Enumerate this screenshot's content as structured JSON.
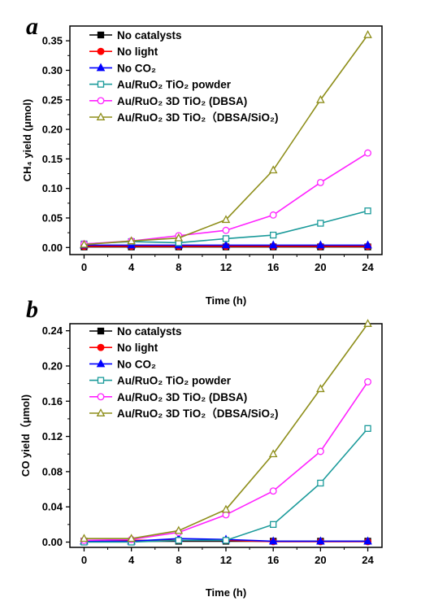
{
  "colors": {
    "No catalysts": "#000000",
    "No light": "#ff0000",
    "No CO2": "#0000ff",
    "Au/RuO2 TiO2 powder": "#1a9a9a",
    "Au/RuO2 3D TiO2 (DBSA)": "#ff22ff",
    "Au/RuO2 3D TiO2 (DBSA/SiO2)": "#8e8e1a"
  },
  "chart_data": [
    {
      "panel": "a",
      "type": "line",
      "xlabel": "Time (h)",
      "ylabel": "CH₄ yield (μmol)",
      "x": [
        0,
        4,
        8,
        12,
        16,
        20,
        24
      ],
      "xticks": [
        "0",
        "4",
        "8",
        "12",
        "16",
        "20",
        "24"
      ],
      "xlim": [
        -1.2,
        25.2
      ],
      "ylim": [
        -0.012,
        0.375
      ],
      "yticks": [
        "0.00",
        "0.05",
        "0.10",
        "0.15",
        "0.20",
        "0.25",
        "0.30",
        "0.35"
      ],
      "ytick_values": [
        0,
        0.05,
        0.1,
        0.15,
        0.2,
        0.25,
        0.3,
        0.35
      ],
      "legend_position": "top-left",
      "series": [
        {
          "name": "No catalysts",
          "marker": "square-filled",
          "values": [
            0.001,
            0.001,
            0.001,
            0.001,
            0.001,
            0.001,
            0.001
          ]
        },
        {
          "name": "No light",
          "marker": "circle-filled",
          "values": [
            0.002,
            0.002,
            0.002,
            0.002,
            0.002,
            0.002,
            0.002
          ]
        },
        {
          "name": "No CO₂",
          "marker": "triangle-filled",
          "values": [
            0.004,
            0.004,
            0.004,
            0.004,
            0.004,
            0.004,
            0.004
          ]
        },
        {
          "name": "Au/RuO₂ TiO₂ powder",
          "marker": "square-open",
          "values": [
            0.006,
            0.01,
            0.008,
            0.015,
            0.021,
            0.041,
            0.062
          ]
        },
        {
          "name": "Au/RuO₂ 3D TiO₂ (DBSA)",
          "marker": "circle-open",
          "values": [
            0.006,
            0.011,
            0.02,
            0.029,
            0.055,
            0.11,
            0.16
          ]
        },
        {
          "name": "Au/RuO₂ 3D TiO₂（DBSA/SiO₂)",
          "marker": "triangle-open",
          "values": [
            0.005,
            0.011,
            0.016,
            0.047,
            0.131,
            0.25,
            0.36
          ]
        }
      ]
    },
    {
      "panel": "b",
      "type": "line",
      "xlabel": "Time (h)",
      "ylabel": "CO yield（μmol)",
      "x": [
        0,
        4,
        8,
        12,
        16,
        20,
        24
      ],
      "xticks": [
        "0",
        "4",
        "8",
        "12",
        "16",
        "20",
        "24"
      ],
      "xlim": [
        -1.2,
        25.2
      ],
      "ylim": [
        -0.006,
        0.248
      ],
      "yticks": [
        "0.00",
        "0.04",
        "0.08",
        "0.12",
        "0.16",
        "0.20",
        "0.24"
      ],
      "ytick_values": [
        0,
        0.04,
        0.08,
        0.12,
        0.16,
        0.2,
        0.24
      ],
      "legend_position": "top-left",
      "series": [
        {
          "name": "No catalysts",
          "marker": "square-filled",
          "values": [
            0.001,
            0.001,
            0.001,
            0.001,
            0.001,
            0.001,
            0.001
          ]
        },
        {
          "name": "No light",
          "marker": "circle-filled",
          "values": [
            0.002,
            0.002,
            0.002,
            0.002,
            0.0005,
            0.0005,
            0.0005
          ]
        },
        {
          "name": "No CO₂",
          "marker": "triangle-filled",
          "values": [
            0.001,
            0.001,
            0.004,
            0.003,
            0.001,
            0.001,
            0.001
          ]
        },
        {
          "name": "Au/RuO₂ TiO₂ powder",
          "marker": "square-open",
          "values": [
            0.0,
            0.0,
            0.002,
            0.002,
            0.02,
            0.067,
            0.129
          ]
        },
        {
          "name": "Au/RuO₂ 3D TiO₂ (DBSA)",
          "marker": "circle-open",
          "values": [
            0.002,
            0.003,
            0.011,
            0.031,
            0.058,
            0.103,
            0.182
          ]
        },
        {
          "name": "Au/RuO₂ 3D TiO₂（DBSA/SiO₂)",
          "marker": "triangle-open",
          "values": [
            0.004,
            0.004,
            0.013,
            0.037,
            0.1,
            0.174,
            0.248
          ]
        }
      ]
    }
  ]
}
